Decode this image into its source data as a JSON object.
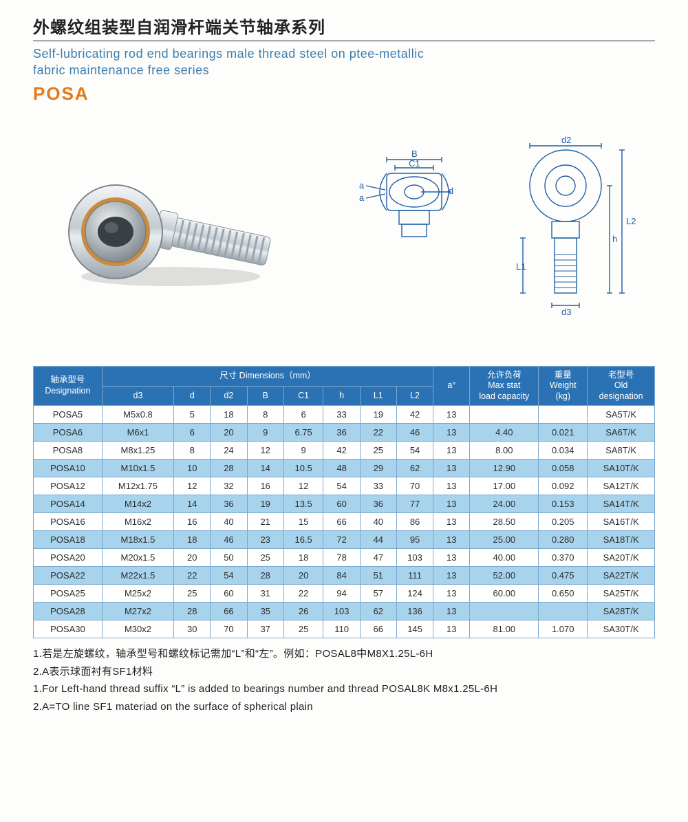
{
  "header": {
    "title_cn": "外螺纹组装型自润滑杆端关节轴承系列",
    "title_en_line1": "Self-lubricating rod end bearings male thread steel on ptee-metallic",
    "title_en_line2": "fabric maintenance free series",
    "brand": "POSA"
  },
  "diagram_labels": {
    "B": "B",
    "C1": "C1",
    "a": "a",
    "d": "d",
    "d2": "d2",
    "h": "h",
    "L1": "L1",
    "L2": "L2",
    "d3": "d3"
  },
  "table": {
    "headers": {
      "designation": "轴承型号\nDesignation",
      "dimensions_group": "尺寸 Dimensions（mm）",
      "d3": "d3",
      "d": "d",
      "d2": "d2",
      "B": "B",
      "C1": "C1",
      "h": "h",
      "L1": "L1",
      "L2": "L2",
      "a": "a°",
      "maxstat": "允许负荷\nMax stat\nload capacity",
      "weight": "重量\nWeight\n(kg)",
      "old": "老型号\nOld\ndesignation"
    },
    "rows": [
      {
        "des": "POSA5",
        "d3": "M5x0.8",
        "d": "5",
        "d2": "18",
        "B": "8",
        "C1": "6",
        "h": "33",
        "L1": "19",
        "L2": "42",
        "a": "13",
        "max": "",
        "wt": "",
        "old": "SA5T/K"
      },
      {
        "des": "POSA6",
        "d3": "M6x1",
        "d": "6",
        "d2": "20",
        "B": "9",
        "C1": "6.75",
        "h": "36",
        "L1": "22",
        "L2": "46",
        "a": "13",
        "max": "4.40",
        "wt": "0.021",
        "old": "SA6T/K"
      },
      {
        "des": "POSA8",
        "d3": "M8x1.25",
        "d": "8",
        "d2": "24",
        "B": "12",
        "C1": "9",
        "h": "42",
        "L1": "25",
        "L2": "54",
        "a": "13",
        "max": "8.00",
        "wt": "0.034",
        "old": "SA8T/K"
      },
      {
        "des": "POSA10",
        "d3": "M10x1.5",
        "d": "10",
        "d2": "28",
        "B": "14",
        "C1": "10.5",
        "h": "48",
        "L1": "29",
        "L2": "62",
        "a": "13",
        "max": "12.90",
        "wt": "0.058",
        "old": "SA10T/K"
      },
      {
        "des": "POSA12",
        "d3": "M12x1.75",
        "d": "12",
        "d2": "32",
        "B": "16",
        "C1": "12",
        "h": "54",
        "L1": "33",
        "L2": "70",
        "a": "13",
        "max": "17.00",
        "wt": "0.092",
        "old": "SA12T/K"
      },
      {
        "des": "POSA14",
        "d3": "M14x2",
        "d": "14",
        "d2": "36",
        "B": "19",
        "C1": "13.5",
        "h": "60",
        "L1": "36",
        "L2": "77",
        "a": "13",
        "max": "24.00",
        "wt": "0.153",
        "old": "SA14T/K"
      },
      {
        "des": "POSA16",
        "d3": "M16x2",
        "d": "16",
        "d2": "40",
        "B": "21",
        "C1": "15",
        "h": "66",
        "L1": "40",
        "L2": "86",
        "a": "13",
        "max": "28.50",
        "wt": "0.205",
        "old": "SA16T/K"
      },
      {
        "des": "POSA18",
        "d3": "M18x1.5",
        "d": "18",
        "d2": "46",
        "B": "23",
        "C1": "16.5",
        "h": "72",
        "L1": "44",
        "L2": "95",
        "a": "13",
        "max": "25.00",
        "wt": "0.280",
        "old": "SA18T/K"
      },
      {
        "des": "POSA20",
        "d3": "M20x1.5",
        "d": "20",
        "d2": "50",
        "B": "25",
        "C1": "18",
        "h": "78",
        "L1": "47",
        "L2": "103",
        "a": "13",
        "max": "40.00",
        "wt": "0.370",
        "old": "SA20T/K"
      },
      {
        "des": "POSA22",
        "d3": "M22x1.5",
        "d": "22",
        "d2": "54",
        "B": "28",
        "C1": "20",
        "h": "84",
        "L1": "51",
        "L2": "111",
        "a": "13",
        "max": "52.00",
        "wt": "0.475",
        "old": "SA22T/K"
      },
      {
        "des": "POSA25",
        "d3": "M25x2",
        "d": "25",
        "d2": "60",
        "B": "31",
        "C1": "22",
        "h": "94",
        "L1": "57",
        "L2": "124",
        "a": "13",
        "max": "60.00",
        "wt": "0.650",
        "old": "SA25T/K"
      },
      {
        "des": "POSA28",
        "d3": "M27x2",
        "d": "28",
        "d2": "66",
        "B": "35",
        "C1": "26",
        "h": "103",
        "L1": "62",
        "L2": "136",
        "a": "13",
        "max": "",
        "wt": "",
        "old": "SA28T/K"
      },
      {
        "des": "POSA30",
        "d3": "M30x2",
        "d": "30",
        "d2": "70",
        "B": "37",
        "C1": "25",
        "h": "110",
        "L1": "66",
        "L2": "145",
        "a": "13",
        "max": "81.00",
        "wt": "1.070",
        "old": "SA30T/K"
      }
    ]
  },
  "notes": {
    "n1": "1.若是左旋螺纹，轴承型号和螺纹标记需加“L”和“左”。例如：POSAL8中M8X1.25L-6H",
    "n2": "2.A表示球面衬有SF1材料",
    "n3": "1.For Left-hand thread suffix “L” is added to bearings number and thread POSAL8K M8x1.25L-6H",
    "n4": "2.A=TO line SF1 materiad on the surface of spherical plain"
  },
  "style": {
    "header_bg": "#2b72b4",
    "row_even_bg": "#a7d3ec",
    "row_odd_bg": "#ffffff",
    "border_color": "#7aa8cf",
    "brand_color": "#e67817",
    "subtitle_color": "#3b7db0"
  }
}
